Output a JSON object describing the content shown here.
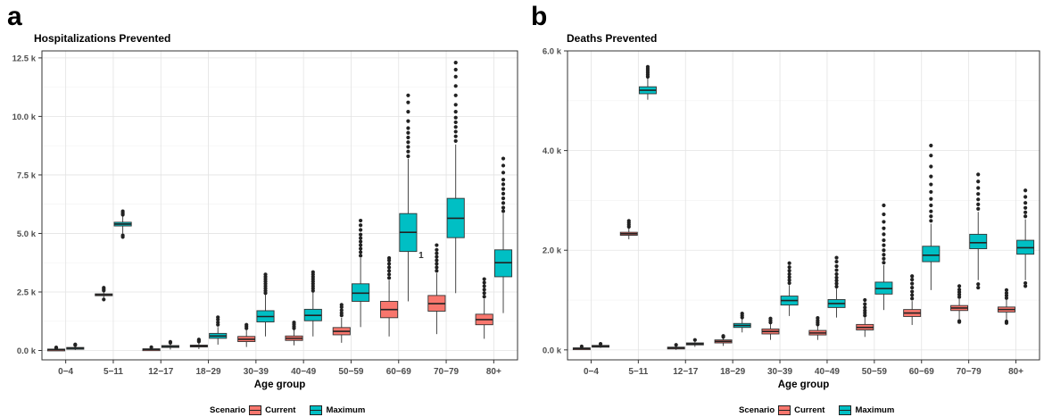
{
  "chart_data": [
    {
      "panel": "a",
      "type": "boxplot",
      "title": "Hospitalizations Prevented",
      "xlabel": "Age group",
      "ylabel": "",
      "ylim": [
        -400,
        12800
      ],
      "yticks": [
        0,
        2500,
        5000,
        7500,
        10000,
        12500
      ],
      "ytick_labels": [
        "0.0 k",
        "2.5 k",
        "5.0 k",
        "7.5 k",
        "10.0 k",
        "12.5 k"
      ],
      "categories": [
        "0−4",
        "5−11",
        "12−17",
        "18−29",
        "30−39",
        "40−49",
        "50−59",
        "60−69",
        "70−79",
        "80+"
      ],
      "annotations": [
        {
          "text": "1",
          "category": "60−69",
          "y": 4100
        }
      ],
      "legend": {
        "title": "Scenario",
        "position": "bottom"
      },
      "series": [
        {
          "name": "Current",
          "color": "#F8766D",
          "boxes": [
            {
              "category": "0−4",
              "q1": 20,
              "med": 40,
              "q3": 60,
              "lo": 0,
              "hi": 90,
              "outliers": [
                110,
                130
              ]
            },
            {
              "category": "5−11",
              "q1": 2340,
              "med": 2380,
              "q3": 2420,
              "lo": 2260,
              "hi": 2500,
              "outliers": [
                2180,
                2560,
                2620,
                2680
              ]
            },
            {
              "category": "12−17",
              "q1": 30,
              "med": 50,
              "q3": 70,
              "lo": 0,
              "hi": 100,
              "outliers": [
                140
              ]
            },
            {
              "category": "18−29",
              "q1": 150,
              "med": 190,
              "q3": 230,
              "lo": 60,
              "hi": 330,
              "outliers": [
                380,
                420,
                470
              ]
            },
            {
              "category": "30−39",
              "q1": 380,
              "med": 480,
              "q3": 600,
              "lo": 150,
              "hi": 870,
              "outliers": [
                950,
                1030,
                1100
              ]
            },
            {
              "category": "40−49",
              "q1": 430,
              "med": 520,
              "q3": 620,
              "lo": 220,
              "hi": 880,
              "outliers": [
                950,
                1030,
                1120,
                1200
              ]
            },
            {
              "category": "50−59",
              "q1": 670,
              "med": 820,
              "q3": 980,
              "lo": 330,
              "hi": 1400,
              "outliers": [
                1500,
                1600,
                1720,
                1850,
                1950
              ]
            },
            {
              "category": "60−69",
              "q1": 1400,
              "med": 1750,
              "q3": 2100,
              "lo": 600,
              "hi": 3000,
              "outliers": [
                3100,
                3250,
                3400,
                3550,
                3700,
                3850,
                3950
              ]
            },
            {
              "category": "70−79",
              "q1": 1680,
              "med": 2000,
              "q3": 2350,
              "lo": 700,
              "hi": 3300,
              "outliers": [
                3400,
                3550,
                3700,
                3850,
                4000,
                4150,
                4300,
                4500
              ]
            },
            {
              "category": "80+",
              "q1": 1100,
              "med": 1320,
              "q3": 1550,
              "lo": 500,
              "hi": 2200,
              "outliers": [
                2300,
                2450,
                2600,
                2750,
                2900,
                3050
              ]
            }
          ]
        },
        {
          "name": "Maximum",
          "color": "#00BFC4",
          "boxes": [
            {
              "category": "0−4",
              "q1": 70,
              "med": 100,
              "q3": 130,
              "lo": 20,
              "hi": 200,
              "outliers": [
                230,
                260
              ]
            },
            {
              "category": "5−11",
              "q1": 5320,
              "med": 5400,
              "q3": 5480,
              "lo": 5000,
              "hi": 5750,
              "outliers": [
                4850,
                4920,
                5800,
                5870,
                5950
              ]
            },
            {
              "category": "12−17",
              "q1": 130,
              "med": 170,
              "q3": 210,
              "lo": 40,
              "hi": 300,
              "outliers": [
                330,
                370
              ]
            },
            {
              "category": "18−29",
              "q1": 520,
              "med": 620,
              "q3": 730,
              "lo": 250,
              "hi": 1000,
              "outliers": [
                1100,
                1200,
                1320,
                1420
              ]
            },
            {
              "category": "30−39",
              "q1": 1220,
              "med": 1450,
              "q3": 1700,
              "lo": 600,
              "hi": 2380,
              "outliers": [
                2450,
                2550,
                2650,
                2750,
                2850,
                2950,
                3050,
                3150,
                3250
              ]
            },
            {
              "category": "40−49",
              "q1": 1270,
              "med": 1500,
              "q3": 1760,
              "lo": 600,
              "hi": 2480,
              "outliers": [
                2550,
                2650,
                2750,
                2850,
                2950,
                3050,
                3150,
                3250,
                3350
              ]
            },
            {
              "category": "50−59",
              "q1": 2100,
              "med": 2450,
              "q3": 2850,
              "lo": 1000,
              "hi": 3950,
              "outliers": [
                4050,
                4200,
                4350,
                4500,
                4650,
                4800,
                4950,
                5150,
                5350,
                5550
              ]
            },
            {
              "category": "60−69",
              "q1": 4230,
              "med": 5050,
              "q3": 5850,
              "lo": 2100,
              "hi": 8200,
              "outliers": [
                8300,
                8500,
                8700,
                8900,
                9100,
                9300,
                9500,
                9800,
                10200,
                10600,
                10900
              ]
            },
            {
              "category": "70−79",
              "q1": 4820,
              "med": 5650,
              "q3": 6500,
              "lo": 2450,
              "hi": 8800,
              "outliers": [
                8950,
                9150,
                9350,
                9550,
                9750,
                9950,
                10200,
                10500,
                10900,
                11300,
                11700,
                12000,
                12300
              ]
            },
            {
              "category": "80+",
              "q1": 3150,
              "med": 3750,
              "q3": 4300,
              "lo": 1600,
              "hi": 5850,
              "outliers": [
                5950,
                6100,
                6300,
                6500,
                6700,
                6900,
                7100,
                7300,
                7600,
                7900,
                8200
              ]
            }
          ]
        }
      ]
    },
    {
      "panel": "b",
      "type": "boxplot",
      "title": "Deaths Prevented",
      "xlabel": "Age group",
      "ylabel": "",
      "ylim": [
        -200,
        6000
      ],
      "yticks": [
        0,
        2000,
        4000,
        6000
      ],
      "ytick_labels": [
        "0.0 k",
        "2.0 k",
        "4.0 k",
        "6.0 k"
      ],
      "categories": [
        "0−4",
        "5−11",
        "12−17",
        "18−29",
        "30−39",
        "40−49",
        "50−59",
        "60−69",
        "70−79",
        "80+"
      ],
      "legend": {
        "title": "Scenario",
        "position": "bottom"
      },
      "series": [
        {
          "name": "Current",
          "color": "#F8766D",
          "boxes": [
            {
              "category": "0−4",
              "q1": 20,
              "med": 30,
              "q3": 40,
              "lo": 0,
              "hi": 60,
              "outliers": [
                70
              ]
            },
            {
              "category": "5−11",
              "q1": 2300,
              "med": 2330,
              "q3": 2360,
              "lo": 2220,
              "hi": 2440,
              "outliers": [
                2470,
                2510,
                2550,
                2590
              ]
            },
            {
              "category": "12−17",
              "q1": 25,
              "med": 40,
              "q3": 55,
              "lo": 0,
              "hi": 80,
              "outliers": [
                100
              ]
            },
            {
              "category": "18−29",
              "q1": 140,
              "med": 170,
              "q3": 200,
              "lo": 80,
              "hi": 240,
              "outliers": [
                260,
                280
              ]
            },
            {
              "category": "30−39",
              "q1": 320,
              "med": 370,
              "q3": 420,
              "lo": 200,
              "hi": 520,
              "outliers": [
                550,
                590,
                630
              ]
            },
            {
              "category": "40−49",
              "q1": 300,
              "med": 340,
              "q3": 390,
              "lo": 200,
              "hi": 480,
              "outliers": [
                510,
                550,
                590,
                640
              ]
            },
            {
              "category": "50−59",
              "q1": 400,
              "med": 450,
              "q3": 510,
              "lo": 260,
              "hi": 650,
              "outliers": [
                690,
                740,
                790,
                850,
                920,
                1000
              ]
            },
            {
              "category": "60−69",
              "q1": 670,
              "med": 740,
              "q3": 810,
              "lo": 500,
              "hi": 980,
              "outliers": [
                1030,
                1100,
                1170,
                1250,
                1330,
                1410,
                1480
              ]
            },
            {
              "category": "70−79",
              "q1": 790,
              "med": 840,
              "q3": 890,
              "lo": 620,
              "hi": 1020,
              "outliers": [
                560,
                580,
                1060,
                1110,
                1160,
                1210,
                1280
              ]
            },
            {
              "category": "80+",
              "q1": 760,
              "med": 810,
              "q3": 860,
              "lo": 600,
              "hi": 1000,
              "outliers": [
                540,
                570,
                1040,
                1090,
                1140,
                1200
              ]
            }
          ]
        },
        {
          "name": "Maximum",
          "color": "#00BFC4",
          "boxes": [
            {
              "category": "0−4",
              "q1": 60,
              "med": 75,
              "q3": 90,
              "lo": 40,
              "hi": 110,
              "outliers": [
                120
              ]
            },
            {
              "category": "5−11",
              "q1": 5140,
              "med": 5210,
              "q3": 5280,
              "lo": 5020,
              "hi": 5450,
              "outliers": [
                5480,
                5520,
                5560,
                5600,
                5640,
                5680
              ]
            },
            {
              "category": "12−17",
              "q1": 100,
              "med": 120,
              "q3": 140,
              "lo": 60,
              "hi": 180,
              "outliers": [
                200
              ]
            },
            {
              "category": "18−29",
              "q1": 450,
              "med": 490,
              "q3": 530,
              "lo": 350,
              "hi": 620,
              "outliers": [
                650,
                690,
                730
              ]
            },
            {
              "category": "30−39",
              "q1": 900,
              "med": 990,
              "q3": 1080,
              "lo": 680,
              "hi": 1300,
              "outliers": [
                1340,
                1400,
                1460,
                1520,
                1590,
                1660,
                1740
              ]
            },
            {
              "category": "40−49",
              "q1": 850,
              "med": 930,
              "q3": 1010,
              "lo": 650,
              "hi": 1230,
              "outliers": [
                1270,
                1330,
                1390,
                1450,
                1520,
                1600,
                1680,
                1770,
                1850
              ]
            },
            {
              "category": "50−59",
              "q1": 1120,
              "med": 1230,
              "q3": 1360,
              "lo": 800,
              "hi": 1700,
              "outliers": [
                1750,
                1830,
                1910,
                2000,
                2100,
                2200,
                2320,
                2440,
                2570,
                2720,
                2900
              ]
            },
            {
              "category": "60−69",
              "q1": 1770,
              "med": 1900,
              "q3": 2080,
              "lo": 1200,
              "hi": 2530,
              "outliers": [
                2590,
                2680,
                2780,
                2900,
                3030,
                3170,
                3320,
                3480,
                3680,
                3900,
                4100
              ]
            },
            {
              "category": "70−79",
              "q1": 2030,
              "med": 2150,
              "q3": 2320,
              "lo": 1400,
              "hi": 2770,
              "outliers": [
                1250,
                1320,
                2830,
                2920,
                3020,
                3130,
                3250,
                3380,
                3520
              ]
            },
            {
              "category": "80+",
              "q1": 1920,
              "med": 2050,
              "q3": 2200,
              "lo": 1400,
              "hi": 2620,
              "outliers": [
                1280,
                1340,
                2680,
                2760,
                2850,
                2950,
                3070,
                3200
              ]
            }
          ]
        }
      ]
    }
  ],
  "panels": [
    {
      "letter": "a",
      "title": "Hospitalizations Prevented"
    },
    {
      "letter": "b",
      "title": "Deaths Prevented"
    }
  ],
  "legend": {
    "title": "Scenario",
    "items": [
      "Current",
      "Maximum"
    ]
  }
}
